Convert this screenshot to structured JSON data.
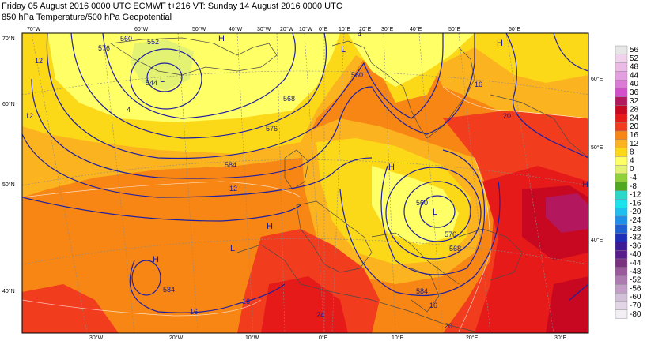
{
  "header": {
    "line1": "Friday 05 August 2016 0000 UTC  ECMWF  t+216  VT: Sunday 14 August 2016 0000 UTC",
    "line2": "850 hPa Temperature/500 hPa Geopotential"
  },
  "colorbar": {
    "labels": [
      "56",
      "52",
      "48",
      "44",
      "40",
      "36",
      "32",
      "28",
      "24",
      "20",
      "16",
      "12",
      "8",
      "4",
      "0",
      "-4",
      "-8",
      "-12",
      "-16",
      "-20",
      "-24",
      "-28",
      "-32",
      "-36",
      "-40",
      "-44",
      "-48",
      "-52",
      "-56",
      "-60",
      "-70",
      "-80"
    ],
    "colors": [
      "#e6e6e6",
      "#f0d2ec",
      "#ebbbe6",
      "#e49fe0",
      "#dc7bd6",
      "#d44fcb",
      "#b3185e",
      "#c80820",
      "#e61a19",
      "#f23c1e",
      "#f78614",
      "#fbb31f",
      "#fcd918",
      "#ffff66",
      "#e3f272",
      "#8fd13a",
      "#4fa81f",
      "#2bd7c7",
      "#19e3ec",
      "#1fbff2",
      "#1f8fe8",
      "#1f5fd4",
      "#1d2fb8",
      "#3c1a96",
      "#5a1e8c",
      "#7a3280",
      "#985a9a",
      "#ad7bb0",
      "#c29ec6",
      "#d2bfd8",
      "#e2d6e6",
      "#f2eef4"
    ]
  },
  "geo_labels": {
    "top_lon": [
      "70°W",
      "60°W",
      "50°W",
      "40°W",
      "30°W",
      "20°W",
      "10°W",
      "0°E",
      "10°E",
      "20°E",
      "30°E",
      "40°E",
      "50°E",
      "60°E"
    ],
    "bottom_lon": [
      "30°W",
      "20°W",
      "10°W",
      "0°E",
      "10°E",
      "20°E",
      "30°E"
    ],
    "left_lat": [
      "70°N",
      "60°N",
      "50°N",
      "40°N"
    ],
    "right_lat": [
      "60°E",
      "50°E",
      "40°E"
    ]
  },
  "pressure_centers": [
    {
      "letter": "H"
    },
    {
      "letter": "H"
    },
    {
      "letter": "L"
    },
    {
      "letter": "L"
    },
    {
      "letter": "H"
    },
    {
      "letter": "H"
    },
    {
      "letter": "L"
    },
    {
      "letter": "L"
    },
    {
      "letter": "H"
    },
    {
      "letter": "H"
    }
  ],
  "contour_labels": [
    "552",
    "544",
    "560",
    "568",
    "576",
    "584",
    "576",
    "568",
    "560",
    "584",
    "12",
    "16",
    "16",
    "16",
    "20",
    "20",
    "24",
    "16",
    "4",
    "576",
    "584",
    "560",
    "4",
    "12",
    "12"
  ]
}
